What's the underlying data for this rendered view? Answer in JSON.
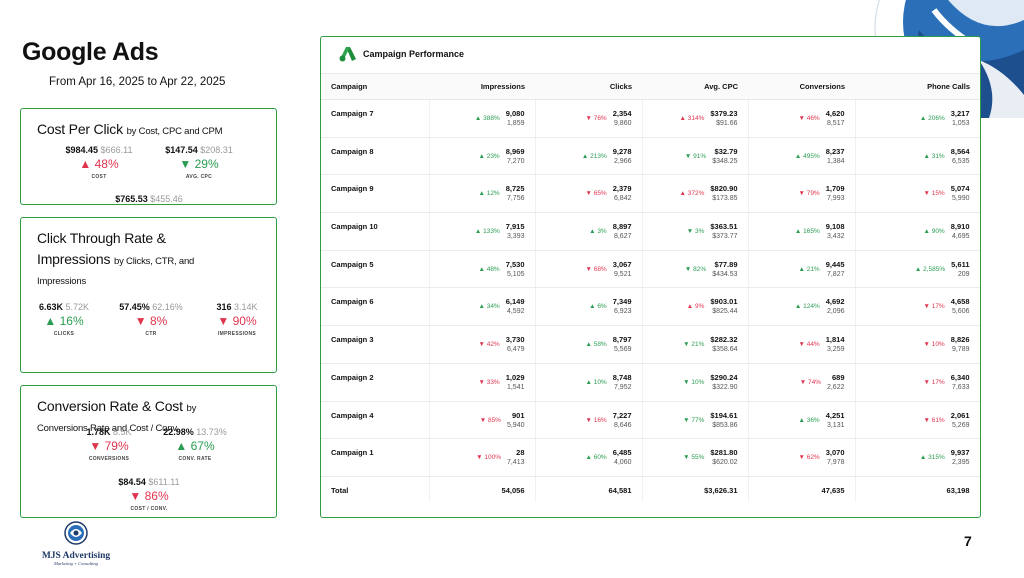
{
  "title": "Google Ads",
  "date_range": "From Apr 16, 2025 to Apr 22, 2025",
  "page_number": "7",
  "logo": {
    "name": "MJS Advertising",
    "tagline": "Marketing + Consulting"
  },
  "colors": {
    "up": "#2a9d52",
    "down": "#e0354f",
    "border": "#2e9e44",
    "brand": "#1f5fa3"
  },
  "cards": {
    "cpc": {
      "title": "Cost Per Click",
      "subtitle": "by Cost, CPC and CPM",
      "metrics": [
        {
          "value": "$984.45",
          "previous": "$666.11",
          "arrow": "▲",
          "dir": "up",
          "change": "48%",
          "label": "COST"
        },
        {
          "value": "$147.54",
          "previous": "$208.31",
          "arrow": "▼",
          "dir": "up",
          "change": "29%",
          "label": "AVG. CPC"
        },
        {
          "value": "$765.53",
          "previous": "$455.46"
        }
      ]
    },
    "ctr": {
      "title": "Click Through Rate &",
      "title2": "Impressions",
      "subtitle": "by Clicks, CTR, and",
      "subtitle2": "Impressions",
      "metrics": [
        {
          "value": "6.63K",
          "previous": "5.72K",
          "arrow": "▲",
          "dir": "up",
          "change": "16%",
          "label": "CLICKS"
        },
        {
          "value": "57.45%",
          "previous": "62.16%",
          "arrow": "▼",
          "dir": "down",
          "change": "8%",
          "label": "CTR"
        },
        {
          "value": "316",
          "previous": "3.14K",
          "arrow": "▼",
          "dir": "down",
          "change": "90%",
          "label": "IMPRESSIONS"
        }
      ]
    },
    "conv": {
      "title": "Conversion Rate & Cost",
      "subtitle": "by",
      "subtitle2": "Conversions Rate and Cost / Conv.",
      "metrics": [
        {
          "value": "1.78K",
          "previous": "8.5K",
          "arrow": "▼",
          "dir": "down",
          "change": "79%",
          "label": "CONVERSIONS"
        },
        {
          "value": "22.98%",
          "previous": "13.73%",
          "arrow": "▲",
          "dir": "up",
          "change": "67%",
          "label": "CONV. RATE"
        },
        {
          "value": "$84.54",
          "previous": "$611.11",
          "arrow": "▼",
          "dir": "down",
          "change": "86%",
          "label": "COST / CONV."
        }
      ]
    }
  },
  "campaign_table": {
    "title": "Campaign Performance",
    "columns": [
      "Campaign",
      "Impressions",
      "Clicks",
      "Avg. CPC",
      "Conversions",
      "Phone Calls"
    ],
    "rows": [
      {
        "name": "Campaign 7",
        "cells": [
          {
            "pct": "388%",
            "dir": "up",
            "cur": "9,080",
            "prev": "1,859"
          },
          {
            "pct": "76%",
            "dir": "down",
            "cur": "2,354",
            "prev": "9,860"
          },
          {
            "pct": "314%",
            "dir": "down",
            "arrow": "▲",
            "cur": "$379.23",
            "prev": "$91.66"
          },
          {
            "pct": "46%",
            "dir": "down",
            "cur": "4,620",
            "prev": "8,517"
          },
          {
            "pct": "206%",
            "dir": "up",
            "cur": "3,217",
            "prev": "1,053"
          }
        ]
      },
      {
        "name": "Campaign 8",
        "cells": [
          {
            "pct": "23%",
            "dir": "up",
            "cur": "8,969",
            "prev": "7,270"
          },
          {
            "pct": "213%",
            "dir": "up",
            "cur": "9,278",
            "prev": "2,966"
          },
          {
            "pct": "91%",
            "dir": "up",
            "arrow": "▼",
            "cur": "$32.79",
            "prev": "$348.25"
          },
          {
            "pct": "495%",
            "dir": "up",
            "cur": "8,237",
            "prev": "1,384"
          },
          {
            "pct": "31%",
            "dir": "up",
            "cur": "8,564",
            "prev": "6,535"
          }
        ]
      },
      {
        "name": "Campaign 9",
        "cells": [
          {
            "pct": "12%",
            "dir": "up",
            "cur": "8,725",
            "prev": "7,756"
          },
          {
            "pct": "65%",
            "dir": "down",
            "cur": "2,379",
            "prev": "6,842"
          },
          {
            "pct": "372%",
            "dir": "down",
            "arrow": "▲",
            "cur": "$820.90",
            "prev": "$173.85"
          },
          {
            "pct": "79%",
            "dir": "down",
            "cur": "1,709",
            "prev": "7,993"
          },
          {
            "pct": "15%",
            "dir": "down",
            "cur": "5,074",
            "prev": "5,990"
          }
        ]
      },
      {
        "name": "Campaign 10",
        "cells": [
          {
            "pct": "133%",
            "dir": "up",
            "cur": "7,915",
            "prev": "3,393"
          },
          {
            "pct": "3%",
            "dir": "up",
            "cur": "8,897",
            "prev": "8,627"
          },
          {
            "pct": "3%",
            "dir": "up",
            "arrow": "▼",
            "cur": "$363.51",
            "prev": "$373.77"
          },
          {
            "pct": "165%",
            "dir": "up",
            "cur": "9,108",
            "prev": "3,432"
          },
          {
            "pct": "90%",
            "dir": "up",
            "cur": "8,910",
            "prev": "4,695"
          }
        ]
      },
      {
        "name": "Campaign 5",
        "cells": [
          {
            "pct": "48%",
            "dir": "up",
            "cur": "7,530",
            "prev": "5,105"
          },
          {
            "pct": "68%",
            "dir": "down",
            "cur": "3,067",
            "prev": "9,521"
          },
          {
            "pct": "82%",
            "dir": "up",
            "arrow": "▼",
            "cur": "$77.89",
            "prev": "$434.53"
          },
          {
            "pct": "21%",
            "dir": "up",
            "cur": "9,445",
            "prev": "7,827"
          },
          {
            "pct": "2,585%",
            "dir": "up",
            "cur": "5,611",
            "prev": "209"
          }
        ]
      },
      {
        "name": "Campaign 6",
        "cells": [
          {
            "pct": "34%",
            "dir": "up",
            "cur": "6,149",
            "prev": "4,592"
          },
          {
            "pct": "6%",
            "dir": "up",
            "cur": "7,349",
            "prev": "6,923"
          },
          {
            "pct": "9%",
            "dir": "down",
            "arrow": "▲",
            "cur": "$903.01",
            "prev": "$825.44"
          },
          {
            "pct": "124%",
            "dir": "up",
            "cur": "4,692",
            "prev": "2,096"
          },
          {
            "pct": "17%",
            "dir": "down",
            "cur": "4,658",
            "prev": "5,606"
          }
        ]
      },
      {
        "name": "Campaign 3",
        "cells": [
          {
            "pct": "42%",
            "dir": "down",
            "cur": "3,730",
            "prev": "6,479"
          },
          {
            "pct": "58%",
            "dir": "up",
            "cur": "8,797",
            "prev": "5,569"
          },
          {
            "pct": "21%",
            "dir": "up",
            "arrow": "▼",
            "cur": "$282.32",
            "prev": "$358.64"
          },
          {
            "pct": "44%",
            "dir": "down",
            "cur": "1,814",
            "prev": "3,259"
          },
          {
            "pct": "10%",
            "dir": "down",
            "cur": "8,826",
            "prev": "9,789"
          }
        ]
      },
      {
        "name": "Campaign 2",
        "cells": [
          {
            "pct": "33%",
            "dir": "down",
            "cur": "1,029",
            "prev": "1,541"
          },
          {
            "pct": "10%",
            "dir": "up",
            "cur": "8,748",
            "prev": "7,952"
          },
          {
            "pct": "10%",
            "dir": "up",
            "arrow": "▼",
            "cur": "$290.24",
            "prev": "$322.90"
          },
          {
            "pct": "74%",
            "dir": "down",
            "cur": "689",
            "prev": "2,622"
          },
          {
            "pct": "17%",
            "dir": "down",
            "cur": "6,340",
            "prev": "7,633"
          }
        ]
      },
      {
        "name": "Campaign 4",
        "cells": [
          {
            "pct": "85%",
            "dir": "down",
            "cur": "901",
            "prev": "5,940"
          },
          {
            "pct": "16%",
            "dir": "down",
            "cur": "7,227",
            "prev": "8,646"
          },
          {
            "pct": "77%",
            "dir": "up",
            "arrow": "▼",
            "cur": "$194.61",
            "prev": "$853.86"
          },
          {
            "pct": "36%",
            "dir": "up",
            "cur": "4,251",
            "prev": "3,131"
          },
          {
            "pct": "61%",
            "dir": "down",
            "cur": "2,061",
            "prev": "5,269"
          }
        ]
      },
      {
        "name": "Campaign 1",
        "cells": [
          {
            "pct": "100%",
            "dir": "down",
            "cur": "28",
            "prev": "7,413"
          },
          {
            "pct": "60%",
            "dir": "up",
            "cur": "6,485",
            "prev": "4,060"
          },
          {
            "pct": "55%",
            "dir": "up",
            "arrow": "▼",
            "cur": "$281.80",
            "prev": "$620.02"
          },
          {
            "pct": "62%",
            "dir": "down",
            "cur": "3,070",
            "prev": "7,978"
          },
          {
            "pct": "315%",
            "dir": "up",
            "cur": "9,937",
            "prev": "2,395"
          }
        ]
      }
    ],
    "total": {
      "label": "Total",
      "values": [
        "54,056",
        "64,581",
        "$3,626.31",
        "47,635",
        "63,198"
      ]
    }
  }
}
